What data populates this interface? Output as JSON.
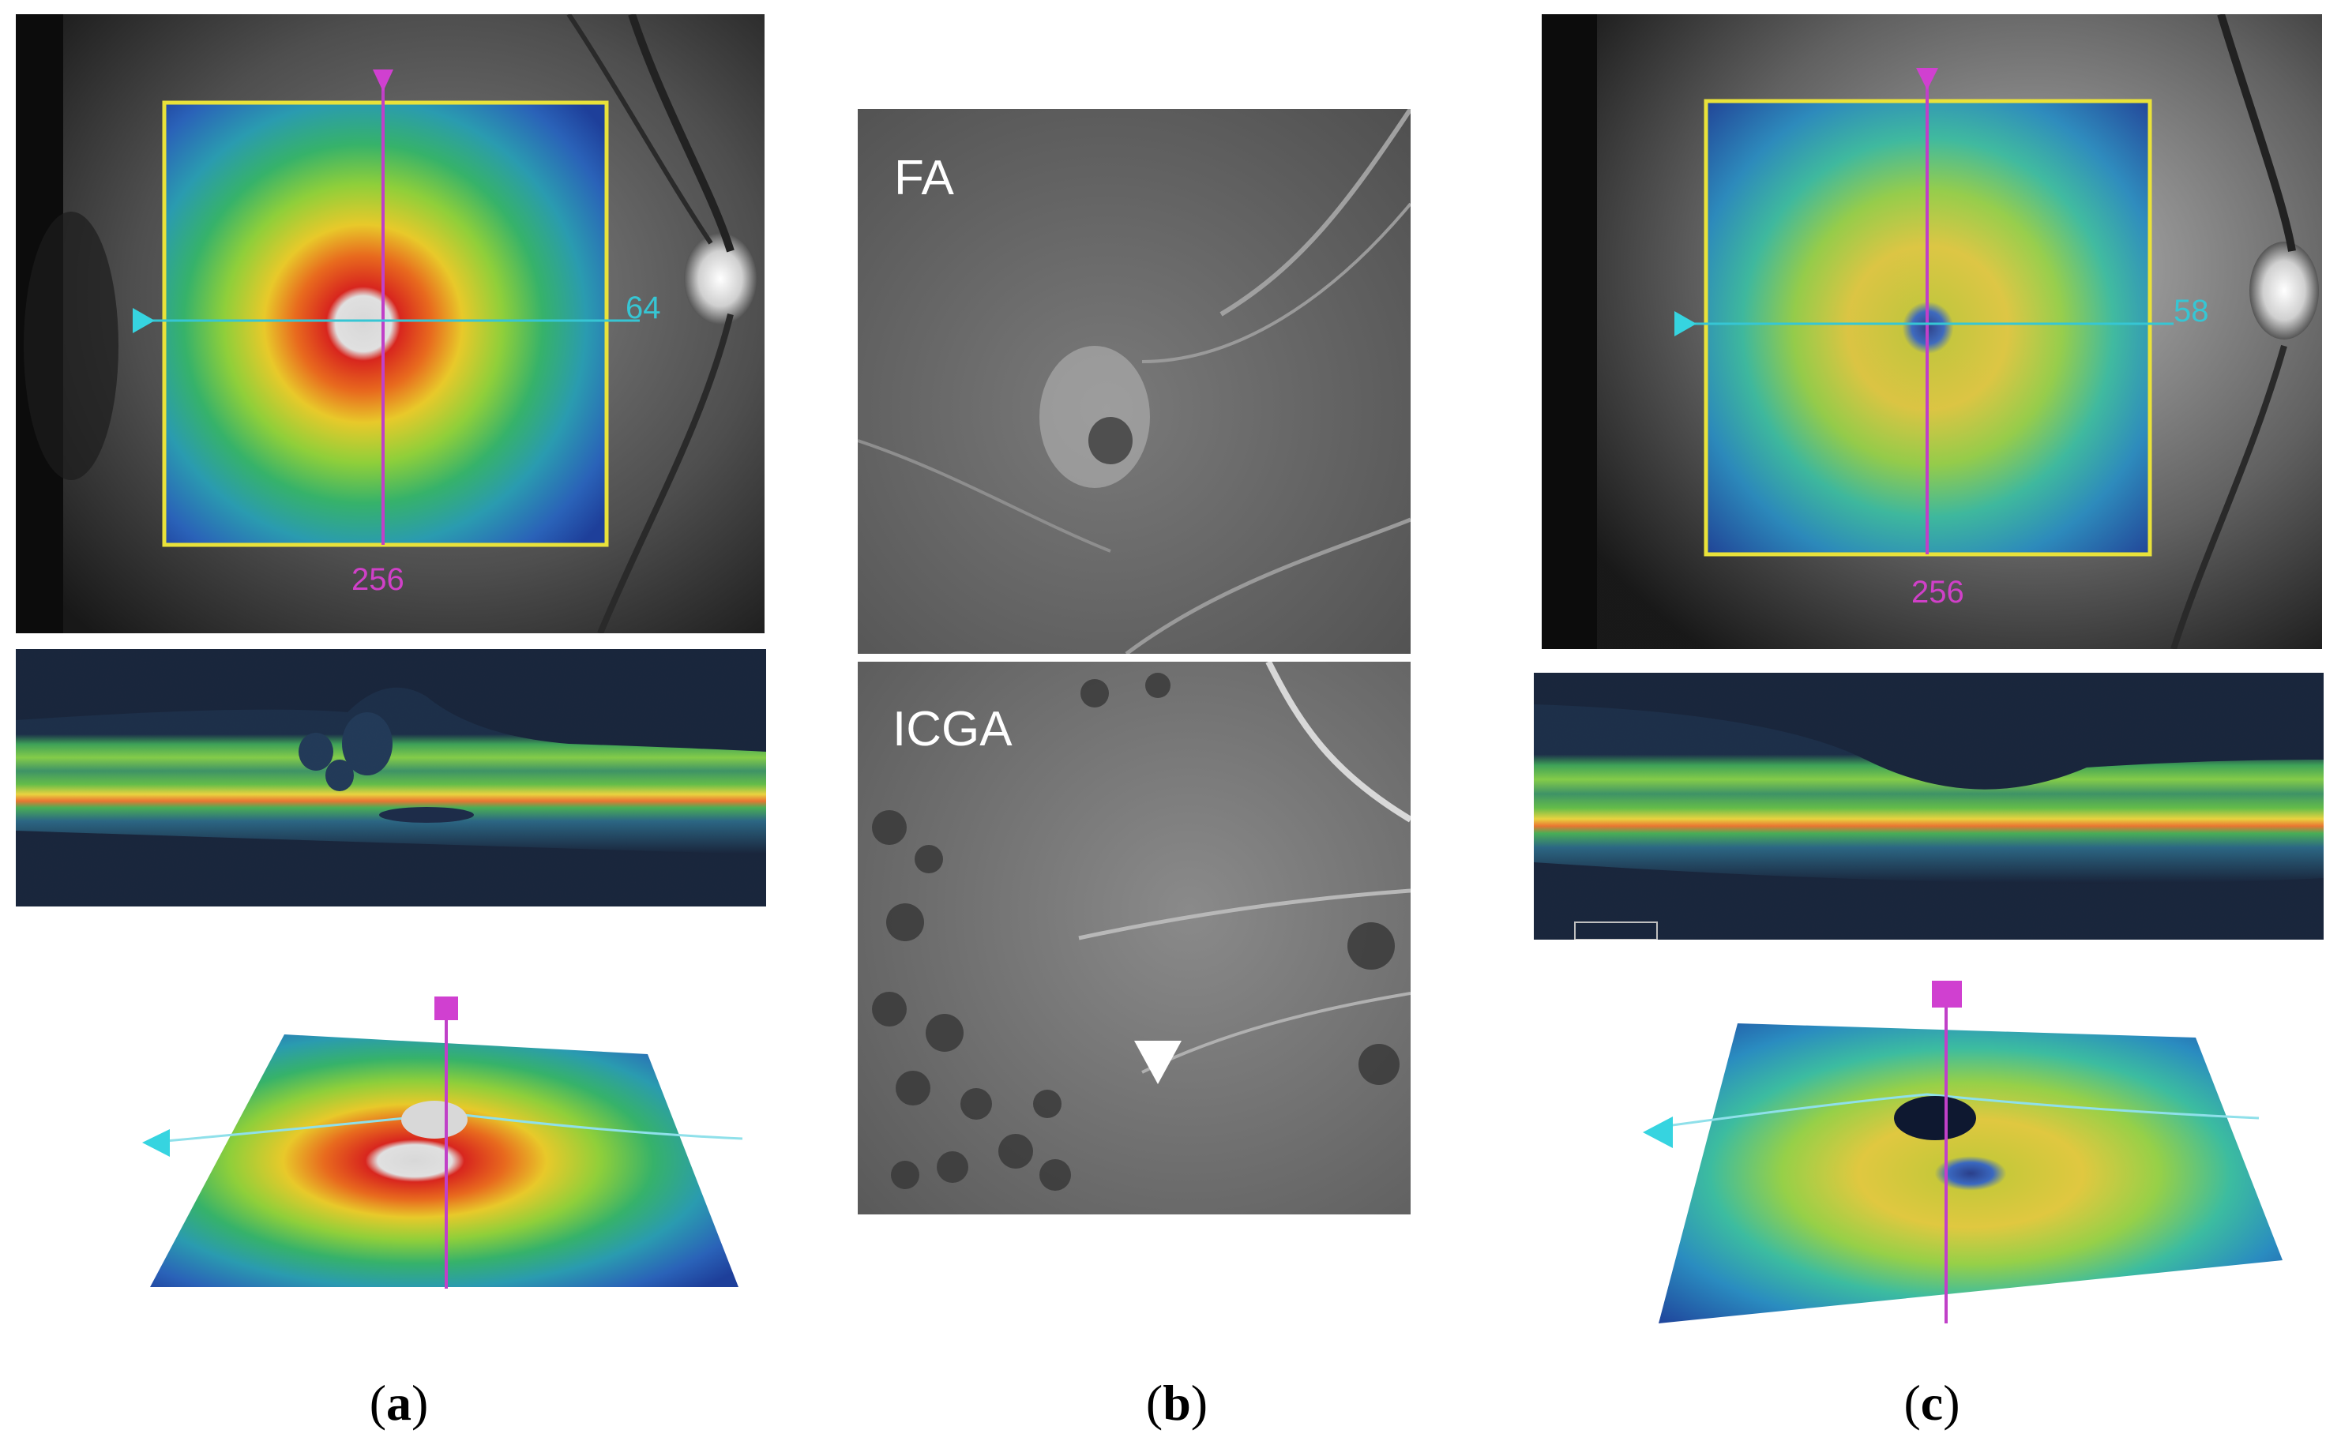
{
  "figure": {
    "panels": [
      {
        "id": "a",
        "caption": "(a)",
        "scan_marker_bottom": "256",
        "scan_marker_right": "64"
      },
      {
        "id": "b",
        "caption": "(b)",
        "top_image_label": "FA",
        "bottom_image_label": "ICGA"
      },
      {
        "id": "c",
        "caption": "(c)",
        "scan_marker_bottom": "256",
        "scan_marker_right": "58"
      }
    ],
    "colors": {
      "scan_box": "#e9e23a",
      "vertical_line": "#c040c8",
      "horizontal_line": "#36c6d4",
      "background": "#ffffff"
    }
  }
}
